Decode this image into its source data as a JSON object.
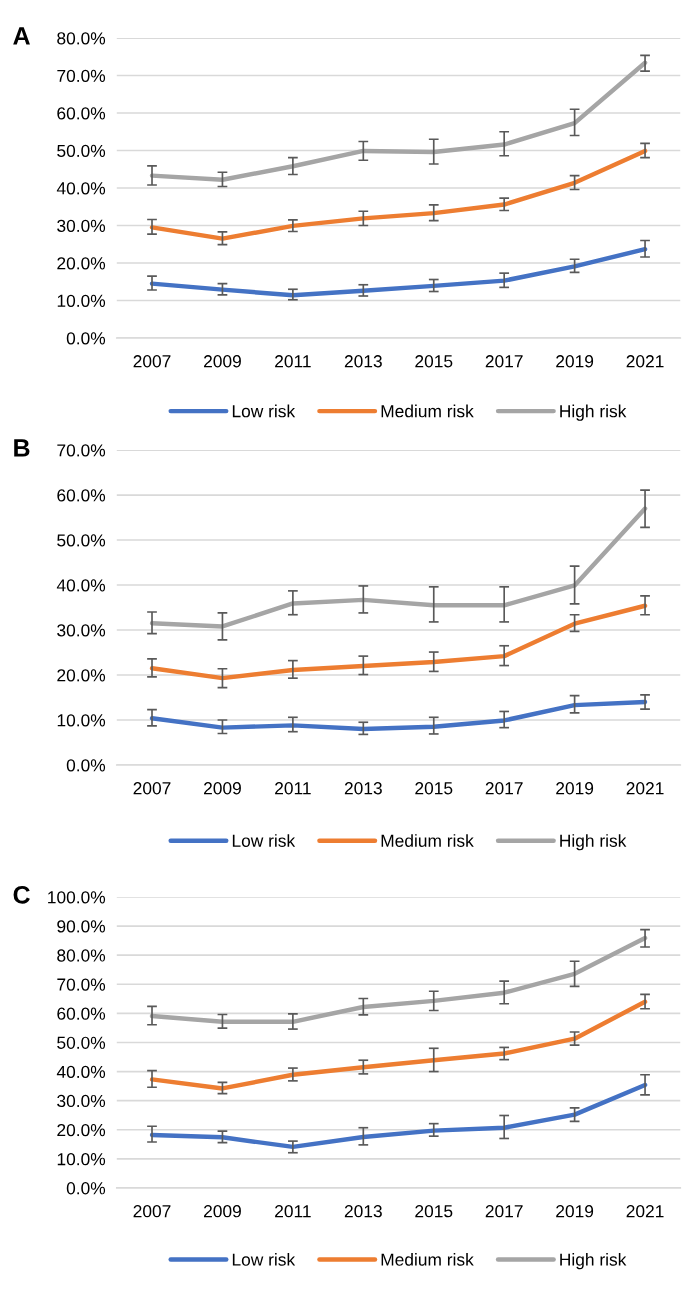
{
  "chart_data": [
    {
      "type": "line",
      "title": "A",
      "categories": [
        "2007",
        "2009",
        "2011",
        "2013",
        "2015",
        "2017",
        "2019",
        "2021"
      ],
      "ylim": [
        0,
        80
      ],
      "yticks": [
        {
          "value": 0,
          "label": "0.0%"
        },
        {
          "value": 10,
          "label": "10.0%"
        },
        {
          "value": 20,
          "label": "20.0%"
        },
        {
          "value": 30,
          "label": "30.0%"
        },
        {
          "value": 40,
          "label": "40.0%"
        },
        {
          "value": 50,
          "label": "50.0%"
        },
        {
          "value": 60,
          "label": "60.0%"
        },
        {
          "value": 70,
          "label": "70.0%"
        },
        {
          "value": 80,
          "label": "80.0%"
        }
      ],
      "grid": "y",
      "legend": "bottom",
      "series": [
        {
          "name": "Low risk",
          "color": "#4472c4",
          "values": [
            14.5,
            12.9,
            11.4,
            12.6,
            13.9,
            15.3,
            19.1,
            23.7
          ],
          "errors": [
            [
              12.8,
              16.5
            ],
            [
              11.5,
              14.5
            ],
            [
              10.2,
              13.0
            ],
            [
              11.2,
              14.2
            ],
            [
              12.4,
              15.6
            ],
            [
              13.5,
              17.3
            ],
            [
              17.5,
              21.0
            ],
            [
              21.6,
              26.0
            ]
          ]
        },
        {
          "name": "Medium risk",
          "color": "#ed7d31",
          "values": [
            29.5,
            26.5,
            29.9,
            31.9,
            33.3,
            35.6,
            41.4,
            49.9
          ],
          "errors": [
            [
              27.7,
              31.6
            ],
            [
              24.9,
              28.3
            ],
            [
              28.4,
              31.5
            ],
            [
              30.0,
              33.8
            ],
            [
              31.3,
              35.5
            ],
            [
              34.0,
              37.3
            ],
            [
              39.6,
              43.3
            ],
            [
              48.1,
              51.9
            ]
          ]
        },
        {
          "name": "High risk",
          "color": "#a5a5a5",
          "values": [
            43.3,
            42.2,
            45.8,
            49.9,
            49.6,
            51.6,
            57.3,
            73.4
          ],
          "errors": [
            [
              40.8,
              45.9
            ],
            [
              40.4,
              44.2
            ],
            [
              43.6,
              48.1
            ],
            [
              47.4,
              52.4
            ],
            [
              46.4,
              53.0
            ],
            [
              48.6,
              55.0
            ],
            [
              54.0,
              61.0
            ],
            [
              71.2,
              75.4
            ]
          ]
        }
      ]
    },
    {
      "type": "line",
      "title": "B",
      "categories": [
        "2007",
        "2009",
        "2011",
        "2013",
        "2015",
        "2017",
        "2019",
        "2021"
      ],
      "ylim": [
        0,
        70
      ],
      "yticks": [
        {
          "value": 0,
          "label": "0.0%"
        },
        {
          "value": 10,
          "label": "10.0%"
        },
        {
          "value": 20,
          "label": "20.0%"
        },
        {
          "value": 30,
          "label": "30.0%"
        },
        {
          "value": 40,
          "label": "40.0%"
        },
        {
          "value": 50,
          "label": "50.0%"
        },
        {
          "value": 60,
          "label": "60.0%"
        },
        {
          "value": 70,
          "label": "70.0%"
        }
      ],
      "grid": "y",
      "legend": "bottom",
      "series": [
        {
          "name": "Low risk",
          "color": "#4472c4",
          "values": [
            10.4,
            8.3,
            8.8,
            8.0,
            8.5,
            9.9,
            13.3,
            14.0
          ],
          "errors": [
            [
              8.7,
              12.3
            ],
            [
              7.0,
              10.0
            ],
            [
              7.4,
              10.6
            ],
            [
              6.8,
              9.5
            ],
            [
              6.9,
              10.6
            ],
            [
              8.3,
              11.9
            ],
            [
              11.6,
              15.4
            ],
            [
              12.4,
              15.6
            ]
          ]
        },
        {
          "name": "Medium risk",
          "color": "#ed7d31",
          "values": [
            21.5,
            19.3,
            21.1,
            22.0,
            22.9,
            24.2,
            31.4,
            35.4
          ],
          "errors": [
            [
              19.6,
              23.6
            ],
            [
              17.2,
              21.4
            ],
            [
              19.3,
              23.2
            ],
            [
              20.1,
              24.2
            ],
            [
              20.8,
              25.1
            ],
            [
              22.1,
              26.5
            ],
            [
              29.7,
              33.4
            ],
            [
              33.4,
              37.6
            ]
          ]
        },
        {
          "name": "High risk",
          "color": "#a5a5a5",
          "values": [
            31.5,
            30.8,
            35.9,
            36.7,
            35.5,
            35.5,
            39.9,
            57.0
          ],
          "errors": [
            [
              29.2,
              34.0
            ],
            [
              27.8,
              33.8
            ],
            [
              33.4,
              38.7
            ],
            [
              33.8,
              39.8
            ],
            [
              31.8,
              39.6
            ],
            [
              31.8,
              39.6
            ],
            [
              35.8,
              44.2
            ],
            [
              52.8,
              61.1
            ]
          ]
        }
      ]
    },
    {
      "type": "line",
      "title": "C",
      "categories": [
        "2007",
        "2009",
        "2011",
        "2013",
        "2015",
        "2017",
        "2019",
        "2021"
      ],
      "ylim": [
        0,
        100
      ],
      "yticks": [
        {
          "value": 0,
          "label": "0.0%"
        },
        {
          "value": 10,
          "label": "10.0%"
        },
        {
          "value": 20,
          "label": "20.0%"
        },
        {
          "value": 30,
          "label": "30.0%"
        },
        {
          "value": 40,
          "label": "40.0%"
        },
        {
          "value": 50,
          "label": "50.0%"
        },
        {
          "value": 60,
          "label": "60.0%"
        },
        {
          "value": 70,
          "label": "70.0%"
        },
        {
          "value": 80,
          "label": "80.0%"
        },
        {
          "value": 90,
          "label": "90.0%"
        },
        {
          "value": 100,
          "label": "100.0%"
        }
      ],
      "grid": "y",
      "legend": "bottom",
      "series": [
        {
          "name": "Low risk",
          "color": "#4472c4",
          "values": [
            18.2,
            17.4,
            14.1,
            17.5,
            19.7,
            20.7,
            25.2,
            35.4
          ],
          "errors": [
            [
              15.8,
              21.2
            ],
            [
              15.6,
              19.5
            ],
            [
              12.1,
              16.1
            ],
            [
              14.8,
              20.7
            ],
            [
              17.8,
              22.1
            ],
            [
              17.0,
              24.9
            ],
            [
              22.9,
              27.5
            ],
            [
              32.0,
              38.9
            ]
          ]
        },
        {
          "name": "Medium risk",
          "color": "#ed7d31",
          "values": [
            37.3,
            34.2,
            38.9,
            41.5,
            43.9,
            46.2,
            51.3,
            64.0
          ],
          "errors": [
            [
              34.6,
              40.3
            ],
            [
              32.4,
              36.3
            ],
            [
              36.8,
              41.2
            ],
            [
              39.2,
              43.9
            ],
            [
              40.0,
              48.0
            ],
            [
              44.1,
              48.3
            ],
            [
              49.1,
              53.6
            ],
            [
              61.6,
              66.5
            ]
          ]
        },
        {
          "name": "High risk",
          "color": "#a5a5a5",
          "values": [
            59.1,
            57.1,
            57.1,
            62.2,
            64.3,
            67.1,
            73.6,
            85.9
          ],
          "errors": [
            [
              56.1,
              62.4
            ],
            [
              54.9,
              59.6
            ],
            [
              54.6,
              59.8
            ],
            [
              59.5,
              65.1
            ],
            [
              61.0,
              67.6
            ],
            [
              63.3,
              71.1
            ],
            [
              69.3,
              77.9
            ],
            [
              82.8,
              88.8
            ]
          ]
        }
      ]
    }
  ]
}
